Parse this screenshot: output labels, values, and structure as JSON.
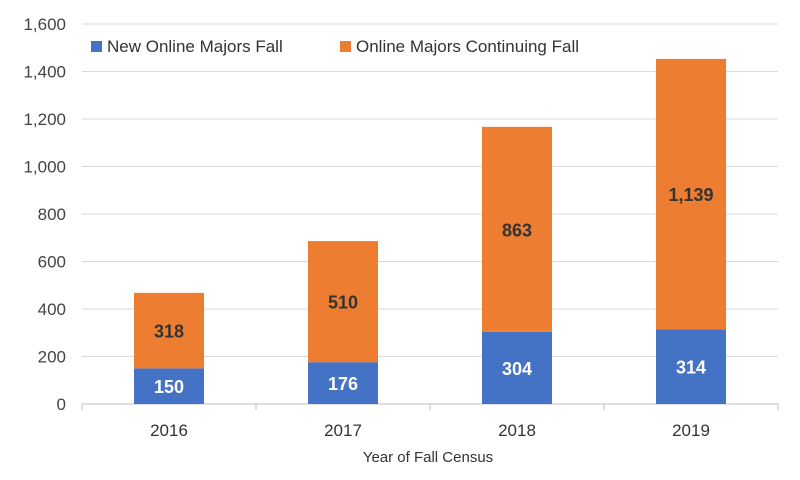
{
  "chart_data": {
    "type": "bar",
    "stacked": true,
    "categories": [
      "2016",
      "2017",
      "2018",
      "2019"
    ],
    "series": [
      {
        "name": "New Online Majors Fall",
        "values": [
          150,
          176,
          304,
          314
        ],
        "color": "#4472c4",
        "label_color": "#ffffff"
      },
      {
        "name": "Online Majors Continuing Fall",
        "values": [
          318,
          510,
          863,
          1139
        ],
        "color": "#ed7d31",
        "label_color": "#333333"
      }
    ],
    "title": "",
    "xlabel": "Year of Fall Census",
    "ylabel": "",
    "ylim": [
      0,
      1600
    ],
    "yticks": [
      {
        "value": 0,
        "label": "0"
      },
      {
        "value": 200,
        "label": "200"
      },
      {
        "value": 400,
        "label": "400"
      },
      {
        "value": 600,
        "label": "600"
      },
      {
        "value": 800,
        "label": "800"
      },
      {
        "value": 1000,
        "label": "1,000"
      },
      {
        "value": 1200,
        "label": "1,200"
      },
      {
        "value": 1400,
        "label": "1,400"
      },
      {
        "value": 1600,
        "label": "1,600"
      }
    ],
    "data_labels": [
      [
        "150",
        "176",
        "304",
        "314"
      ],
      [
        "318",
        "510",
        "863",
        "1,139"
      ]
    ],
    "grid": true,
    "legend": "top-left"
  }
}
